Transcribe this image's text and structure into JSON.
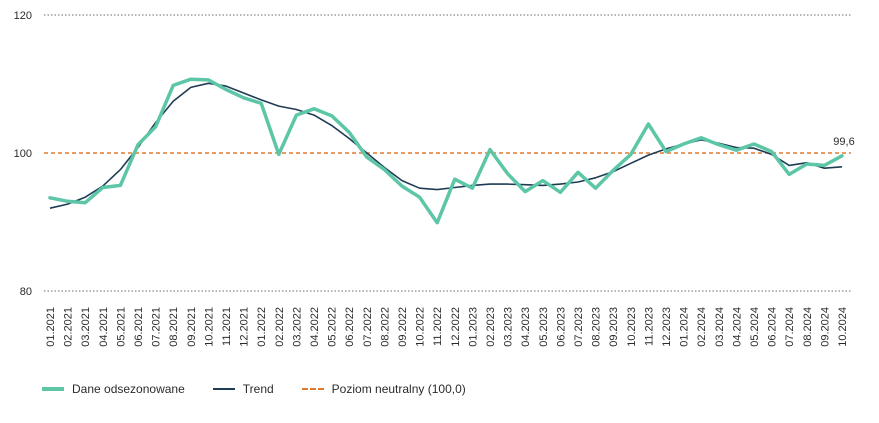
{
  "chart_data": {
    "type": "line",
    "ylim": [
      80,
      120
    ],
    "yticks": [
      80,
      100,
      120
    ],
    "grid": true,
    "legend_position": "bottom-left",
    "categories": [
      "01.2021",
      "02.2021",
      "03.2021",
      "04.2021",
      "05.2021",
      "06.2021",
      "07.2021",
      "08.2021",
      "09.2021",
      "10.2021",
      "11.2021",
      "12.2021",
      "01.2022",
      "02.2022",
      "03.2022",
      "04.2022",
      "05.2022",
      "06.2022",
      "07.2022",
      "08.2022",
      "09.2022",
      "10.2022",
      "11.2022",
      "12.2022",
      "01.2023",
      "02.2023",
      "03.2023",
      "04.2023",
      "05.2023",
      "06.2023",
      "07.2023",
      "08.2023",
      "09.2023",
      "10.2023",
      "11.2023",
      "12.2023",
      "01.2024",
      "02.2024",
      "03.2024",
      "04.2024",
      "05.2024",
      "06.2024",
      "07.2024",
      "08.2024",
      "09.2024",
      "10.2024"
    ],
    "series": [
      {
        "name": "Dane odsezonowane",
        "color": "#5cc6a7",
        "values": [
          93.5,
          93.0,
          92.8,
          95.0,
          95.3,
          101.2,
          103.8,
          109.8,
          110.7,
          110.6,
          109.2,
          108.0,
          107.2,
          99.8,
          105.5,
          106.4,
          105.4,
          103.0,
          99.4,
          97.6,
          95.2,
          93.6,
          89.9,
          96.2,
          94.9,
          100.5,
          97.0,
          94.4,
          96.0,
          94.3,
          97.2,
          94.9,
          97.5,
          99.8,
          104.2,
          100.2,
          101.3,
          102.2,
          101.2,
          100.4,
          101.3,
          100.2,
          96.9,
          98.4,
          98.2,
          99.6
        ]
      },
      {
        "name": "Trend",
        "color": "#1f3c55",
        "values": [
          92.0,
          92.6,
          93.6,
          95.2,
          97.6,
          100.8,
          104.4,
          107.5,
          109.5,
          110.1,
          109.7,
          108.7,
          107.7,
          106.8,
          106.3,
          105.5,
          104.0,
          102.1,
          100.0,
          97.9,
          96.0,
          94.9,
          94.7,
          95.0,
          95.3,
          95.5,
          95.5,
          95.4,
          95.3,
          95.5,
          95.8,
          96.4,
          97.3,
          98.5,
          99.7,
          100.6,
          101.3,
          101.9,
          101.4,
          100.8,
          100.7,
          99.8,
          98.2,
          98.6,
          97.8,
          98.0
        ]
      }
    ],
    "reference_line": {
      "name": "Poziom neutralny (100,0)",
      "value": 100,
      "color": "#e07a2e"
    },
    "annotation": {
      "text": "99,6",
      "x": "10.2024",
      "y": 99.6
    }
  }
}
